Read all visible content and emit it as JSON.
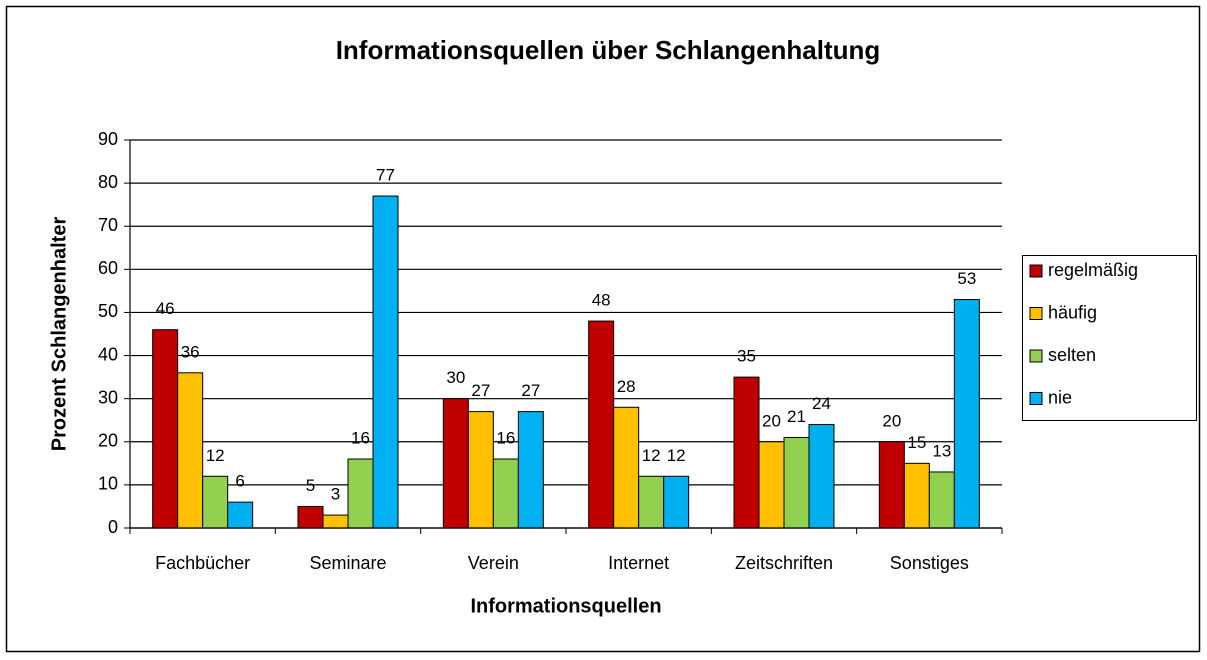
{
  "chart_data": {
    "type": "bar",
    "title": "Informationsquellen über Schlangenhaltung",
    "x_label": "Informationsquellen",
    "y_label": "Prozent Schlangenhalter",
    "categories": [
      "Fachbücher",
      "Seminare",
      "Verein",
      "Internet",
      "Zeitschriften",
      "Sonstiges"
    ],
    "series": [
      {
        "name": "regelmäßig",
        "color": "#c00000",
        "values": [
          46,
          5,
          30,
          48,
          35,
          20
        ]
      },
      {
        "name": "häufig",
        "color": "#ffc000",
        "values": [
          36,
          3,
          27,
          28,
          20,
          15
        ]
      },
      {
        "name": "selten",
        "color": "#92d050",
        "values": [
          12,
          16,
          16,
          12,
          21,
          13
        ]
      },
      {
        "name": "nie",
        "color": "#00b0f0",
        "values": [
          6,
          77,
          27,
          12,
          24,
          53
        ]
      }
    ],
    "ylim": [
      0,
      90
    ],
    "yticks": [
      0,
      10,
      20,
      30,
      40,
      50,
      60,
      70,
      80,
      90
    ],
    "grid": true,
    "legend": "right"
  }
}
